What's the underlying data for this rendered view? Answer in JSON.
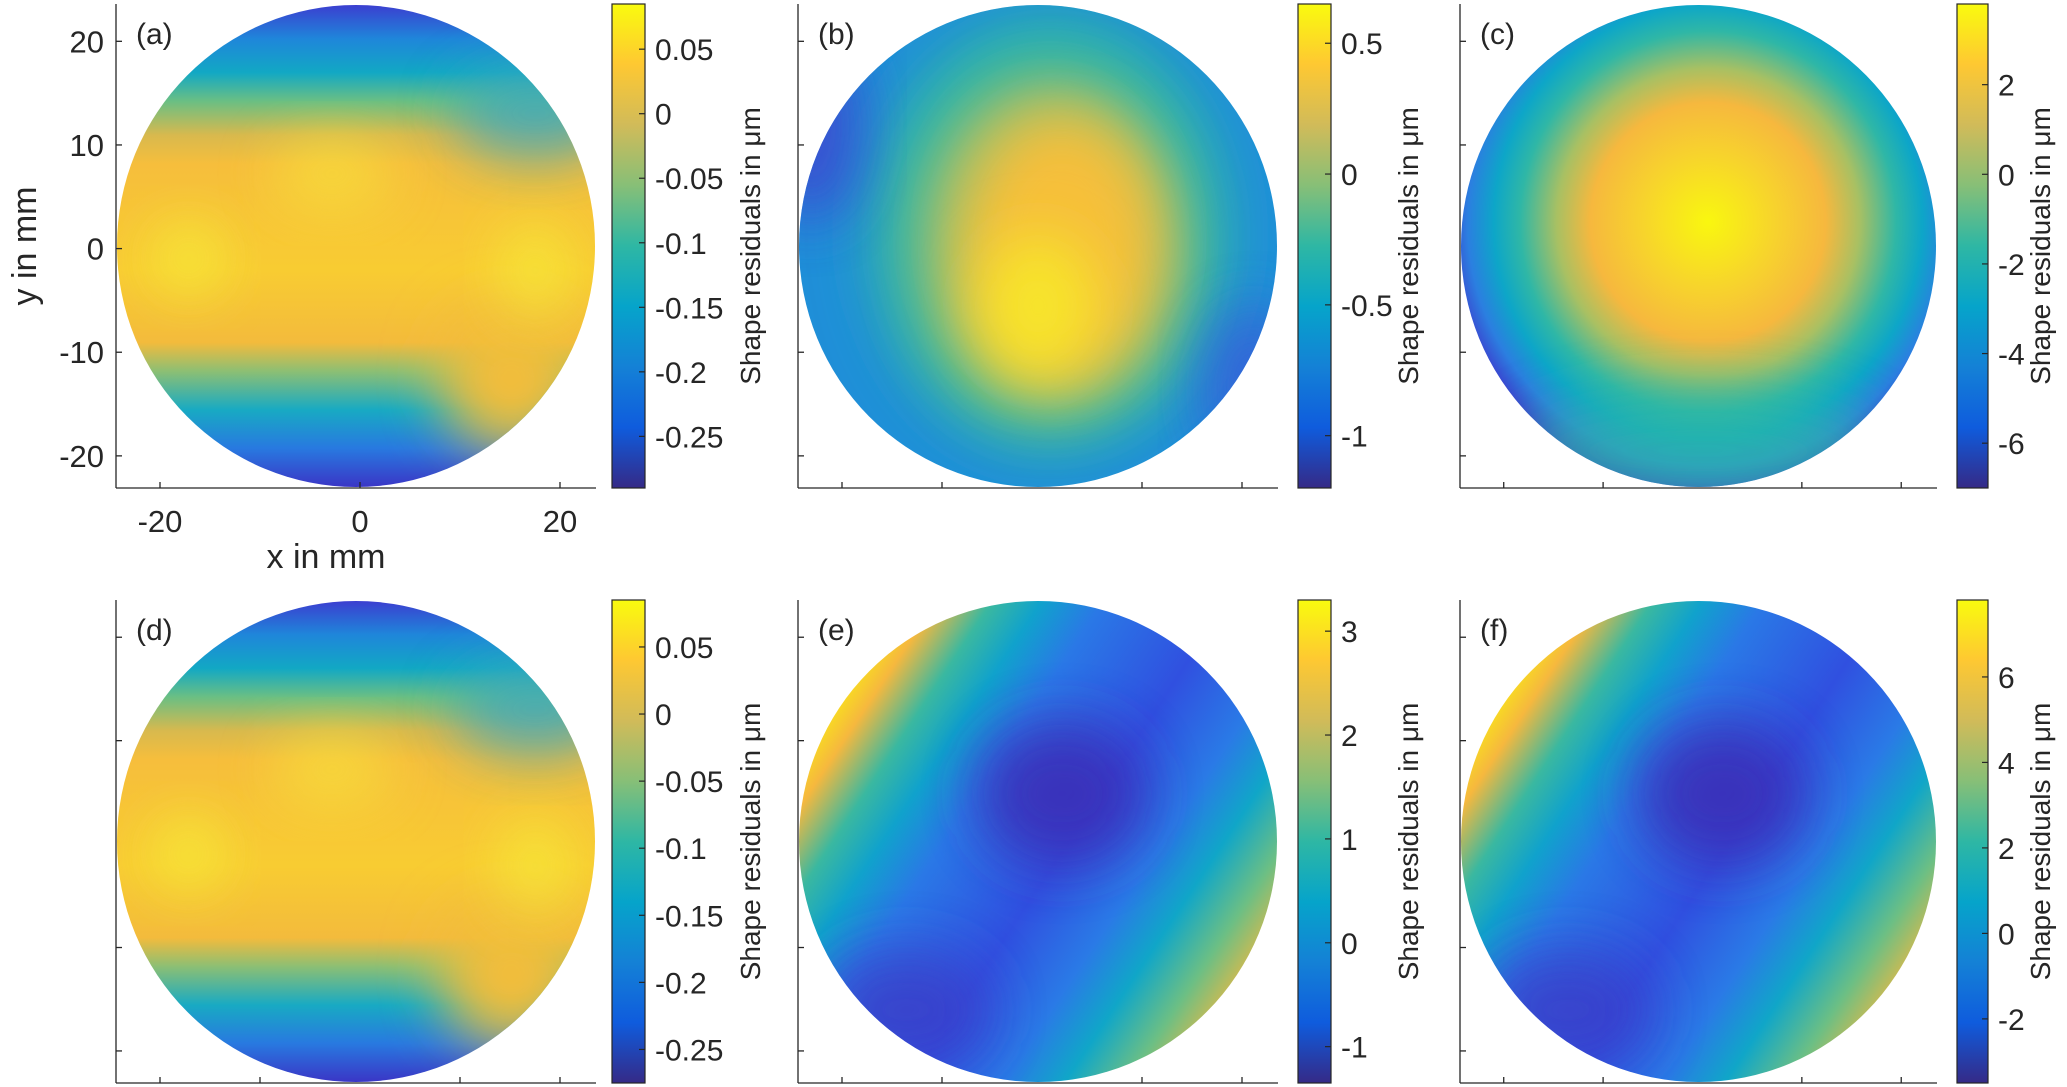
{
  "chart_data": [
    {
      "type": "heatmap",
      "panel": "(a)",
      "title": "",
      "xlabel": "x in mm",
      "ylabel": "y in mm",
      "xlim": [
        -24.4,
        23.6
      ],
      "ylim": [
        -23.1,
        23.6
      ],
      "xticks": [
        -20,
        0,
        20
      ],
      "yticks": [
        -20,
        -10,
        0,
        10,
        20
      ],
      "show_tick_labels": true,
      "colorbar": {
        "label": "Shape residuals in μm",
        "clim": [
          -0.29,
          0.085
        ],
        "ticks": [
          -0.25,
          -0.2,
          -0.15,
          -0.1,
          -0.05,
          0,
          0.05
        ],
        "tick_labels": [
          "-0.25",
          "-0.2",
          "-0.15",
          "-0.1",
          "-0.05",
          "0",
          "0.05"
        ]
      },
      "pattern": "bands-horizontal"
    },
    {
      "type": "heatmap",
      "panel": "(b)",
      "xlabel": "",
      "ylabel": "",
      "xlim": [
        -24.4,
        23.6
      ],
      "ylim": [
        -23.1,
        23.6
      ],
      "xticks": [
        -20,
        -10,
        10,
        20
      ],
      "yticks": [
        -20,
        -10,
        10,
        20
      ],
      "show_tick_labels": false,
      "colorbar": {
        "label": "Shape residuals in μm",
        "clim": [
          -1.2,
          0.65
        ],
        "ticks": [
          -1,
          -0.5,
          0,
          0.5
        ],
        "tick_labels": [
          "-1",
          "-0.5",
          "0",
          "0.5"
        ]
      },
      "pattern": "central-peak-low"
    },
    {
      "type": "heatmap",
      "panel": "(c)",
      "xlabel": "",
      "ylabel": "",
      "xlim": [
        -24.4,
        23.6
      ],
      "ylim": [
        -23.1,
        23.6
      ],
      "xticks": [
        -20,
        -10,
        10,
        20
      ],
      "yticks": [
        -20,
        -10,
        10,
        20
      ],
      "show_tick_labels": false,
      "colorbar": {
        "label": "Shape residuals in μm",
        "clim": [
          -7,
          3.8
        ],
        "ticks": [
          -6,
          -4,
          -2,
          0,
          2
        ],
        "tick_labels": [
          "-6",
          "-4",
          "-2",
          "0",
          "2"
        ]
      },
      "pattern": "central-peak"
    },
    {
      "type": "heatmap",
      "panel": "(d)",
      "xlabel": "",
      "ylabel": "",
      "xlim": [
        -24.4,
        23.6
      ],
      "ylim": [
        -23.1,
        23.6
      ],
      "xticks": [
        -20,
        -10,
        10,
        20
      ],
      "yticks": [
        -20,
        -10,
        10,
        20
      ],
      "show_tick_labels": false,
      "colorbar": {
        "label": "Shape residuals in μm",
        "clim": [
          -0.275,
          0.085
        ],
        "ticks": [
          -0.25,
          -0.2,
          -0.15,
          -0.1,
          -0.05,
          0,
          0.05
        ],
        "tick_labels": [
          "-0.25",
          "-0.2",
          "-0.15",
          "-0.1",
          "-0.05",
          "0",
          "0.05"
        ]
      },
      "pattern": "bands-horizontal"
    },
    {
      "type": "heatmap",
      "panel": "(e)",
      "xlabel": "",
      "ylabel": "",
      "xlim": [
        -24.4,
        23.6
      ],
      "ylim": [
        -23.1,
        23.6
      ],
      "xticks": [
        -20,
        -10,
        10,
        20
      ],
      "yticks": [
        -20,
        -10,
        10,
        20
      ],
      "show_tick_labels": false,
      "colorbar": {
        "label": "Shape residuals in μm",
        "clim": [
          -1.35,
          3.3
        ],
        "ticks": [
          -1,
          0,
          1,
          2,
          3
        ],
        "tick_labels": [
          "-1",
          "0",
          "1",
          "2",
          "3"
        ]
      },
      "pattern": "diagonal-saddle"
    },
    {
      "type": "heatmap",
      "panel": "(f)",
      "xlabel": "",
      "ylabel": "",
      "xlim": [
        -24.4,
        23.6
      ],
      "ylim": [
        -23.1,
        23.6
      ],
      "xticks": [
        -20,
        -10,
        10,
        20
      ],
      "yticks": [
        -20,
        -10,
        10,
        20
      ],
      "show_tick_labels": false,
      "colorbar": {
        "label": "Shape residuals in μm",
        "clim": [
          -3.5,
          7.8
        ],
        "ticks": [
          -2,
          0,
          2,
          4,
          6
        ],
        "tick_labels": [
          "-2",
          "0",
          "2",
          "4",
          "6"
        ]
      },
      "pattern": "diagonal-saddle"
    }
  ],
  "colormap": [
    "#352a87",
    "#0f5cdd",
    "#1481d6",
    "#06a4ca",
    "#2eb7a4",
    "#87bf77",
    "#d1bb59",
    "#fec832",
    "#f9fb0e"
  ]
}
